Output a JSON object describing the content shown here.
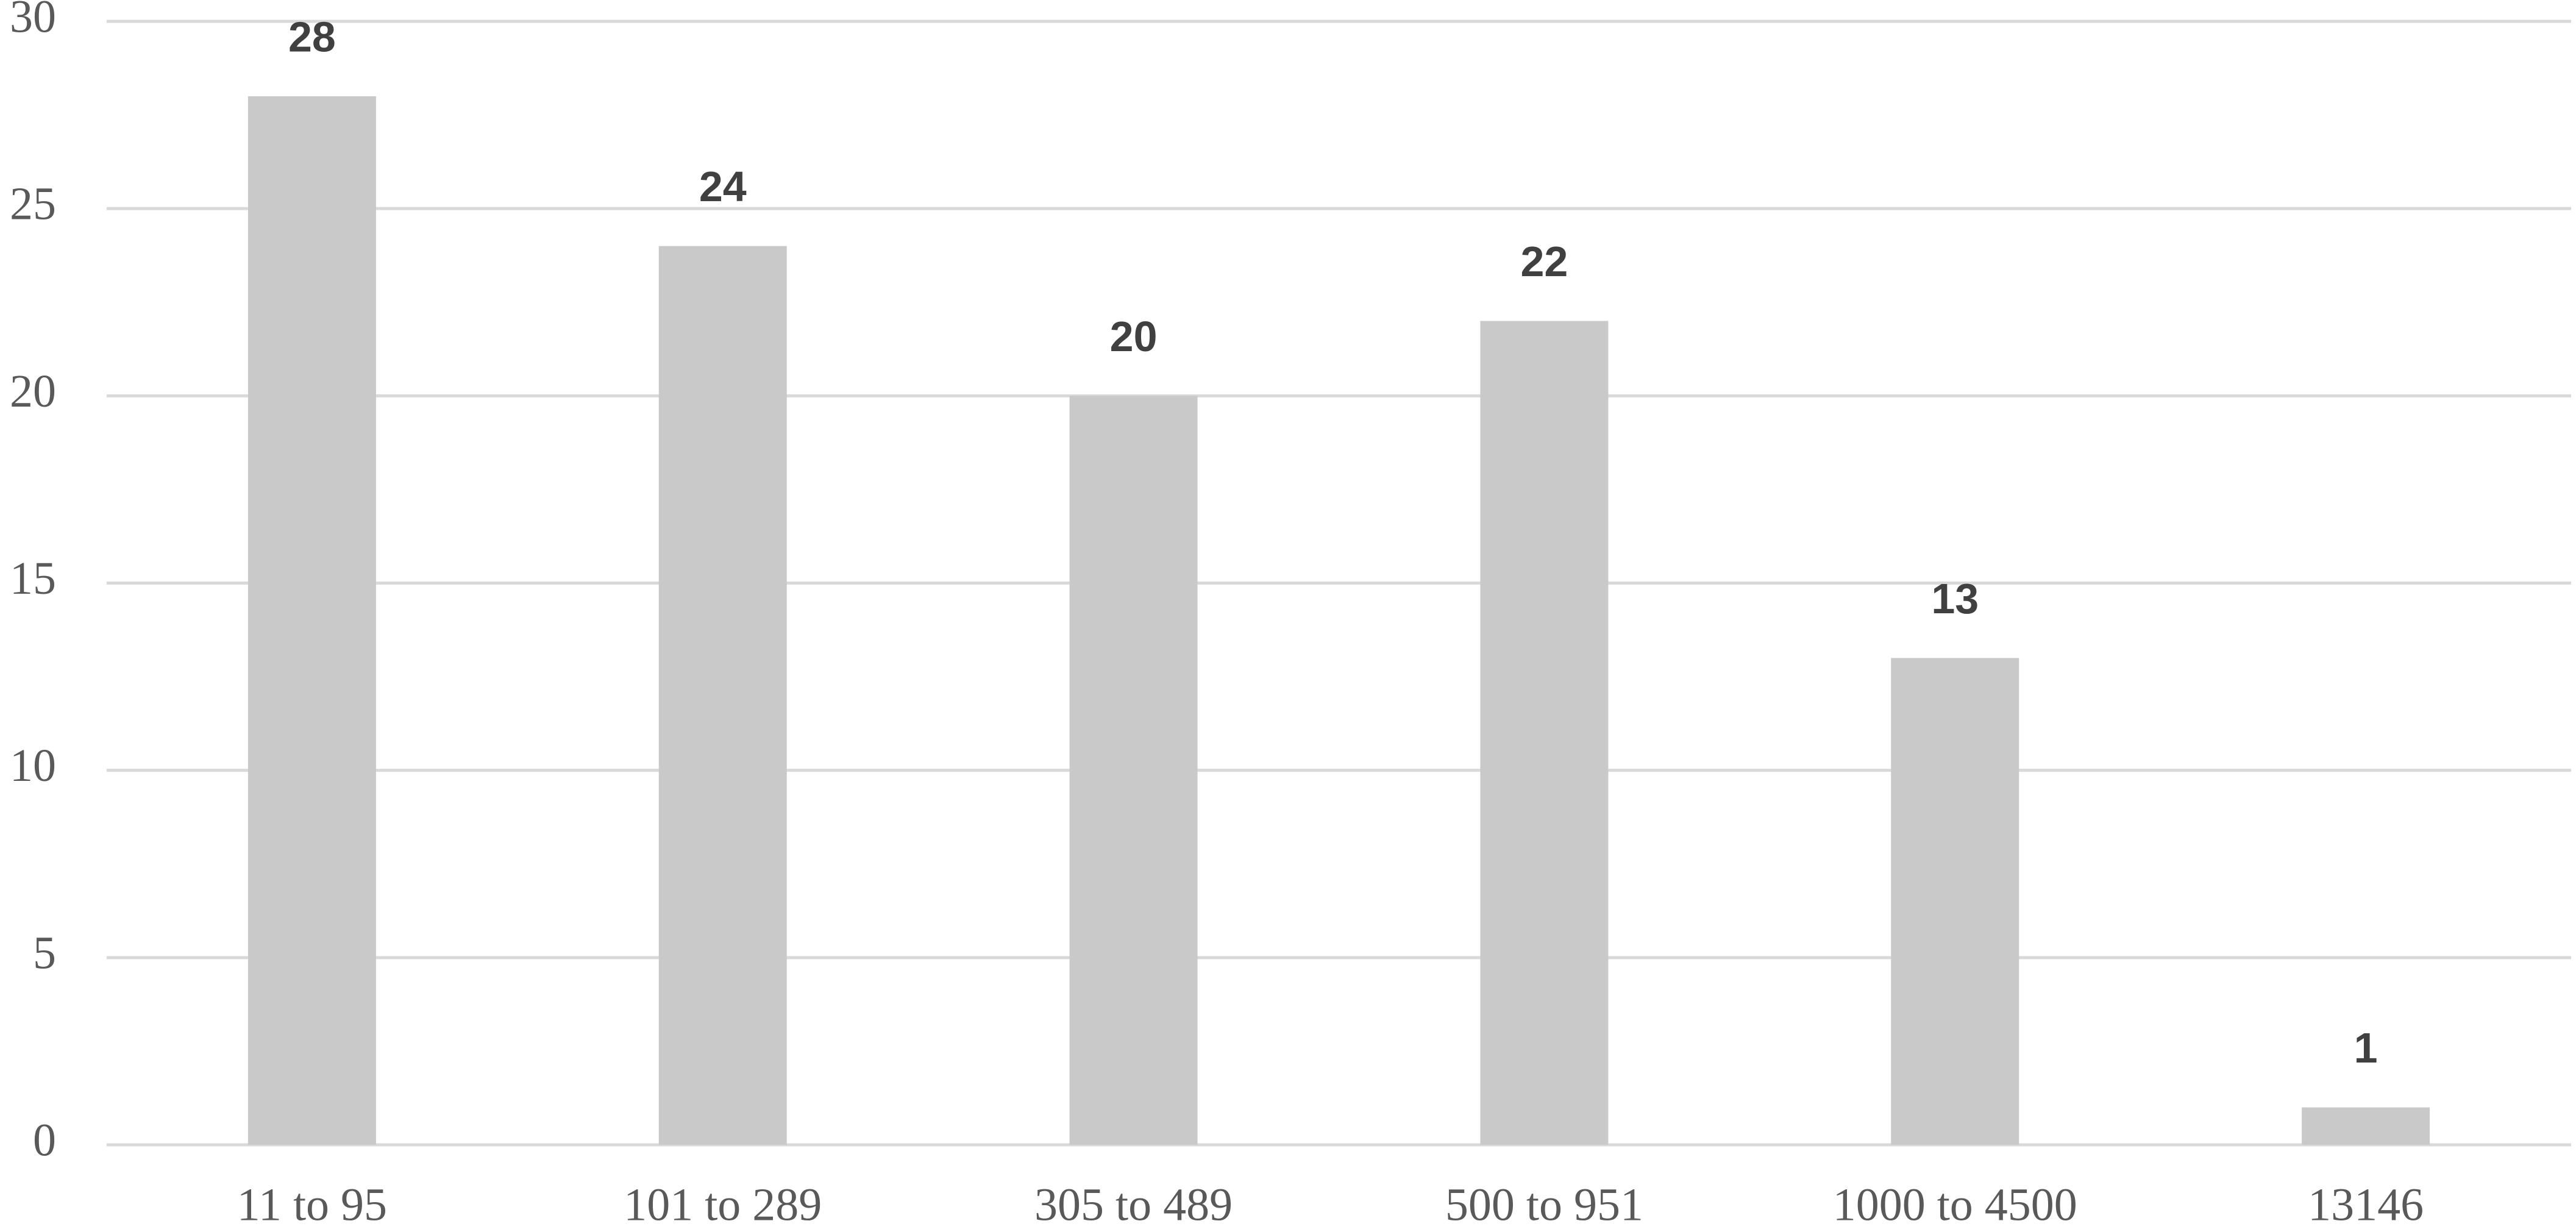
{
  "chart_data": {
    "type": "bar",
    "categories": [
      "11 to 95",
      "101 to 289",
      "305 to 489",
      "500 to 951",
      "1000 to 4500",
      "13146"
    ],
    "values": [
      28,
      24,
      20,
      22,
      13,
      1
    ],
    "color": "#c9c9c9",
    "ylim": [
      0,
      30
    ],
    "yticks": [
      0,
      5,
      10,
      15,
      20,
      25,
      30
    ],
    "grid": true
  }
}
